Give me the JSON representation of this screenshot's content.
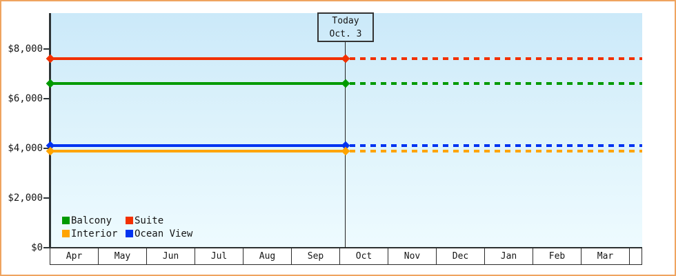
{
  "theme": {
    "frame_border_color": "#efa45f",
    "plot_bg_top": "#cbe9f9",
    "plot_bg_bottom": "#eefbff",
    "axis_color": "#2e3436",
    "text_color": "#151515"
  },
  "chart_data": {
    "type": "line",
    "title": "",
    "xlabel": "",
    "ylabel": "",
    "x_categories": [
      "Apr",
      "May",
      "Jun",
      "Jul",
      "Aug",
      "Sep",
      "Oct",
      "Nov",
      "Dec",
      "Jan",
      "Feb",
      "Mar"
    ],
    "y_axis": {
      "ticks": [
        {
          "label": "$8,000",
          "value": 8000
        },
        {
          "label": "$6,000",
          "value": 6000
        },
        {
          "label": "$4,000",
          "value": 4000
        },
        {
          "label": "$2,000",
          "value": 2000
        },
        {
          "label": "$0",
          "value": 0
        }
      ],
      "range": [
        0,
        9440
      ],
      "grid": false
    },
    "today": {
      "line1": "Today",
      "line2": "Oct. 3",
      "month": "Oct",
      "day": 3
    },
    "series": [
      {
        "name": "Suite",
        "color": "#f23000",
        "value": 7600,
        "style_before_today": "solid",
        "style_after_today": "dashed"
      },
      {
        "name": "Balcony",
        "color": "#009a00",
        "value": 6600,
        "style_before_today": "solid",
        "style_after_today": "dashed"
      },
      {
        "name": "Ocean View",
        "color": "#0033f0",
        "value": 4100,
        "style_before_today": "solid",
        "style_after_today": "dashed"
      },
      {
        "name": "Interior",
        "color": "#ffa400",
        "value": 3900,
        "style_before_today": "solid",
        "style_after_today": "dashed"
      }
    ],
    "legend": {
      "position": "bottom-left-inside-plot",
      "items": [
        {
          "label": "Balcony",
          "color": "#009a00"
        },
        {
          "label": "Suite",
          "color": "#f23000"
        },
        {
          "label": "Interior",
          "color": "#ffa400"
        },
        {
          "label": "Ocean View",
          "color": "#0033f0"
        }
      ]
    }
  }
}
